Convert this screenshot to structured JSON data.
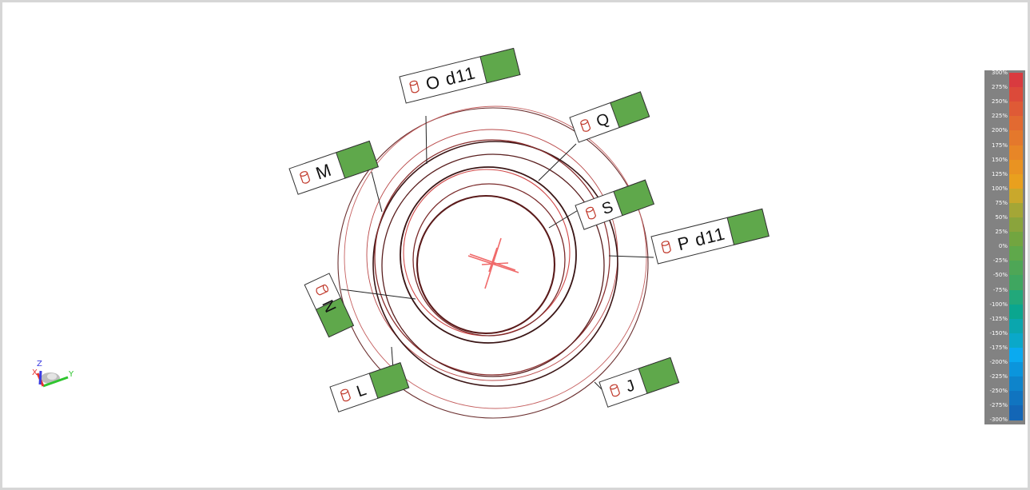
{
  "viewport": {
    "center_marker": "red-cross-marker",
    "callouts": [
      {
        "id": "o",
        "label": "O d11",
        "icon": "cylinder-icon",
        "status_color": "#5fa84b"
      },
      {
        "id": "q",
        "label": "Q",
        "icon": "cylinder-icon",
        "status_color": "#5fa84b"
      },
      {
        "id": "m",
        "label": "M",
        "icon": "cylinder-icon",
        "status_color": "#5fa84b"
      },
      {
        "id": "s",
        "label": "S",
        "icon": "cylinder-icon",
        "status_color": "#5fa84b"
      },
      {
        "id": "p",
        "label": "P d11",
        "icon": "cylinder-icon",
        "status_color": "#5fa84b"
      },
      {
        "id": "n",
        "label": "N",
        "icon": "cylinder-icon",
        "status_color": "#5fa84b"
      },
      {
        "id": "l",
        "label": "L",
        "icon": "cylinder-icon",
        "status_color": "#5fa84b"
      },
      {
        "id": "j",
        "label": "J",
        "icon": "cylinder-icon",
        "status_color": "#5fa84b"
      }
    ]
  },
  "color_scale": {
    "stops": [
      {
        "label": "300%",
        "color": "#d93a3f"
      },
      {
        "label": "275%",
        "color": "#dc4a3a"
      },
      {
        "label": "250%",
        "color": "#df5a36"
      },
      {
        "label": "225%",
        "color": "#e26a31"
      },
      {
        "label": "200%",
        "color": "#e4782c"
      },
      {
        "label": "175%",
        "color": "#e78627"
      },
      {
        "label": "150%",
        "color": "#e99322"
      },
      {
        "label": "125%",
        "color": "#e9a01e"
      },
      {
        "label": "100%",
        "color": "#c9a82c"
      },
      {
        "label": "75%",
        "color": "#a4a636"
      },
      {
        "label": "50%",
        "color": "#8aa43c"
      },
      {
        "label": "25%",
        "color": "#72a540"
      },
      {
        "label": "0%",
        "color": "#5fa84b"
      },
      {
        "label": "-25%",
        "color": "#4ea656"
      },
      {
        "label": "-50%",
        "color": "#3fa660"
      },
      {
        "label": "-75%",
        "color": "#22a87a"
      },
      {
        "label": "-100%",
        "color": "#0aa68f"
      },
      {
        "label": "-125%",
        "color": "#0aa6ae"
      },
      {
        "label": "-150%",
        "color": "#0aa8c9"
      },
      {
        "label": "-175%",
        "color": "#0aaaf0"
      },
      {
        "label": "-200%",
        "color": "#0b95dc"
      },
      {
        "label": "-225%",
        "color": "#0e84cb"
      },
      {
        "label": "-250%",
        "color": "#1074c0"
      },
      {
        "label": "-275%",
        "color": "#1366b6"
      },
      {
        "label": "-300%",
        "color": "#1658aa"
      }
    ]
  },
  "axis_triad": {
    "x_label": "X",
    "y_label": "Y",
    "z_label": "Z",
    "x_color": "#e8332f",
    "y_color": "#2fc52f",
    "z_color": "#3a3ae0"
  }
}
